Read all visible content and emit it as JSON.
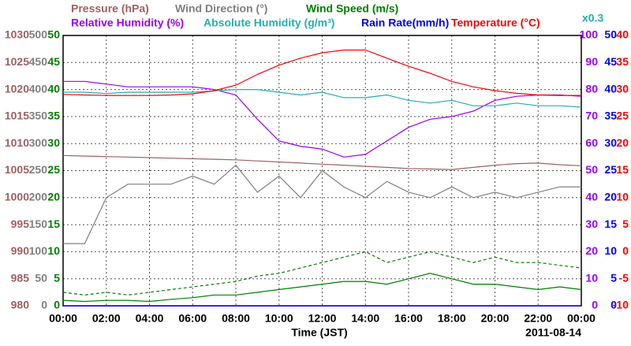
{
  "chart_data": {
    "type": "line",
    "x_label": "Time (JST)",
    "date": "2011-08-14",
    "scale_note": "x0.3",
    "scale_note_color": "#20b0b0",
    "grid": true,
    "x": [
      0,
      1,
      2,
      3,
      4,
      5,
      6,
      7,
      8,
      9,
      10,
      11,
      12,
      13,
      14,
      15,
      16,
      17,
      18,
      19,
      20,
      21,
      22,
      23,
      24
    ],
    "xlim": [
      0,
      24
    ],
    "xticks": [
      {
        "value": 0,
        "label": "00:00"
      },
      {
        "value": 2,
        "label": "02:00"
      },
      {
        "value": 4,
        "label": "04:00"
      },
      {
        "value": 6,
        "label": "06:00"
      },
      {
        "value": 8,
        "label": "08:00"
      },
      {
        "value": 10,
        "label": "10:00"
      },
      {
        "value": 12,
        "label": "12:00"
      },
      {
        "value": 14,
        "label": "14:00"
      },
      {
        "value": 16,
        "label": "16:00"
      },
      {
        "value": 18,
        "label": "18:00"
      },
      {
        "value": 20,
        "label": "20:00"
      },
      {
        "value": 22,
        "label": "22:00"
      },
      {
        "value": 24,
        "label": "00:00"
      }
    ],
    "axes": [
      {
        "side": "left",
        "color": "#a06060",
        "ylim": [
          980,
          1030
        ],
        "yticks": [
          980,
          985,
          990,
          995,
          1000,
          1005,
          1010,
          1015,
          1020,
          1025,
          1030
        ]
      },
      {
        "side": "left",
        "color": "#808080",
        "ylim": [
          0,
          500
        ],
        "yticks": [
          0,
          50,
          100,
          150,
          200,
          250,
          300,
          350,
          400,
          450,
          500
        ]
      },
      {
        "side": "left",
        "color": "#008000",
        "ylim": [
          0,
          50
        ],
        "yticks": [
          0,
          5,
          10,
          15,
          20,
          25,
          30,
          35,
          40,
          45,
          50
        ]
      },
      {
        "side": "right",
        "color": "#9900ff",
        "ylim": [
          0,
          100
        ],
        "yticks": [
          0,
          10,
          20,
          30,
          40,
          50,
          60,
          70,
          80,
          90,
          100
        ]
      },
      {
        "side": "right",
        "color": "#0000ff",
        "ylim": [
          0,
          50
        ],
        "yticks": [
          0,
          5,
          10,
          15,
          20,
          25,
          30,
          35,
          40,
          45,
          50
        ]
      },
      {
        "side": "right",
        "color": "#ff0000",
        "ylim": [
          -10,
          40
        ],
        "yticks": [
          -10,
          -5,
          0,
          5,
          10,
          15,
          20,
          25,
          30,
          35,
          40
        ]
      }
    ],
    "series": [
      {
        "name": "Pressure (hPa)",
        "color": "#a06060",
        "axis": 0,
        "values": [
          1007.8,
          1007.7,
          1007.6,
          1007.5,
          1007.4,
          1007.3,
          1007.2,
          1007.1,
          1007.0,
          1006.8,
          1006.6,
          1006.4,
          1006.2,
          1006.0,
          1005.8,
          1005.6,
          1005.4,
          1005.3,
          1005.2,
          1005.6,
          1006.0,
          1006.3,
          1006.4,
          1006.1,
          1005.9
        ]
      },
      {
        "name": "Wind Direction (°)",
        "color": "#808080",
        "axis": 1,
        "values": [
          115,
          115,
          200,
          225,
          225,
          225,
          240,
          225,
          260,
          210,
          240,
          200,
          250,
          220,
          200,
          230,
          210,
          200,
          220,
          200,
          210,
          200,
          210,
          220,
          220
        ]
      },
      {
        "name": "Wind Speed (m/s)",
        "color": "#008000",
        "axis": 2,
        "values": [
          1,
          0.8,
          1,
          1,
          0.8,
          1.2,
          1.5,
          2,
          2,
          2.5,
          3,
          3.5,
          4,
          4.5,
          4.5,
          4,
          5,
          6,
          5,
          4,
          4,
          3.5,
          3,
          3.5,
          3
        ],
        "max_values": [
          2.5,
          2,
          2.5,
          2,
          2.5,
          3,
          3.5,
          4,
          4.5,
          5.5,
          6,
          7,
          8,
          9,
          10,
          8,
          9,
          10,
          9,
          8,
          9,
          8,
          8,
          7.5,
          7
        ]
      },
      {
        "name": "Relative Humidity (%)",
        "color": "#9900ff",
        "axis": 3,
        "values": [
          83,
          83,
          82,
          81,
          81,
          81,
          81,
          80,
          78,
          69,
          61,
          59,
          58,
          55,
          56,
          61,
          66,
          69,
          70,
          72,
          76,
          77.5,
          78,
          78,
          77.5
        ]
      },
      {
        "name": "Absolute Humidity (g/m³)",
        "color": "#20b0b0",
        "axis": 3,
        "values": [
          79,
          79,
          78.5,
          79,
          79,
          79,
          79,
          79.5,
          80,
          80,
          79,
          78,
          79,
          77,
          77,
          78,
          76,
          75,
          76,
          74,
          74,
          75,
          74,
          74,
          73.5
        ]
      },
      {
        "name": "Rain Rate(mm/h)",
        "color": "#0000ff",
        "axis": 4,
        "values": [
          0,
          0,
          0,
          0,
          0,
          0,
          0,
          0,
          0,
          0,
          0,
          0,
          0,
          0,
          0,
          0,
          0,
          0,
          0,
          0,
          0,
          0,
          0,
          0,
          0
        ]
      },
      {
        "name": "Temperature (°C)",
        "color": "#ff0000",
        "axis": 5,
        "values": [
          29.1,
          29.0,
          28.9,
          28.9,
          28.9,
          29.0,
          29.2,
          29.8,
          30.8,
          32.8,
          34.5,
          35.8,
          36.8,
          37.3,
          37.3,
          35.8,
          34.3,
          33.0,
          31.5,
          30.5,
          29.8,
          29.3,
          29.0,
          28.9,
          28.9
        ]
      }
    ]
  }
}
